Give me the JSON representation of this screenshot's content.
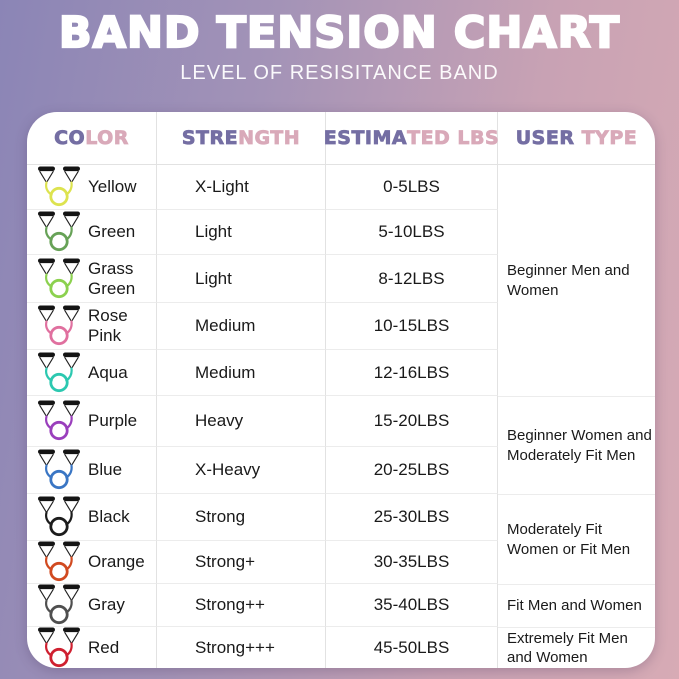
{
  "chart_data": {
    "type": "table",
    "title": "BAND TENSION CHART",
    "subtitle": "LEVEL OF RESISITANCE BAND",
    "columns": [
      {
        "full": "COLOR",
        "part1": "CO",
        "part2": "LOR"
      },
      {
        "full": "STRENGTH",
        "part1": "STRE",
        "part2": "NGTH"
      },
      {
        "full": "ESTIMATED LBS",
        "part1": "ESTIMA",
        "part2": "TED LBS"
      },
      {
        "full": "USER TYPE",
        "part1": "USER",
        "part2": " TYPE"
      }
    ],
    "rows": [
      {
        "color": "Yellow",
        "strength": "X-Light",
        "lbs": "0-5LBS",
        "band_hex": "#dde34f"
      },
      {
        "color": "Green",
        "strength": "Light",
        "lbs": "5-10LBS",
        "band_hex": "#67a257"
      },
      {
        "color": "Grass Green",
        "strength": "Light",
        "lbs": "8-12LBS",
        "band_hex": "#8cd14f"
      },
      {
        "color": "Rose Pink",
        "strength": "Medium",
        "lbs": "10-15LBS",
        "band_hex": "#e0709f"
      },
      {
        "color": "Aqua",
        "strength": "Medium",
        "lbs": "12-16LBS",
        "band_hex": "#2cc8b0"
      },
      {
        "color": "Purple",
        "strength": "Heavy",
        "lbs": "15-20LBS",
        "band_hex": "#9a3fbc"
      },
      {
        "color": "Blue",
        "strength": "X-Heavy",
        "lbs": "20-25LBS",
        "band_hex": "#3a76c4"
      },
      {
        "color": "Black",
        "strength": "Strong",
        "lbs": "25-30LBS",
        "band_hex": "#1c1c1c"
      },
      {
        "color": "Orange",
        "strength": "Strong+",
        "lbs": "30-35LBS",
        "band_hex": "#d14a20"
      },
      {
        "color": "Gray",
        "strength": "Strong++",
        "lbs": "35-40LBS",
        "band_hex": "#4f4f4f"
      },
      {
        "color": "Red",
        "strength": "Strong+++",
        "lbs": "45-50LBS",
        "band_hex": "#cf2030"
      }
    ],
    "user_type_groups": [
      {
        "label": "Beginner Men and Women",
        "rows": 5
      },
      {
        "label": "Beginner Women and Moderately Fit Men",
        "rows": 2
      },
      {
        "label": "Moderately Fit Women or Fit Men",
        "rows": 2
      },
      {
        "label": "Fit Men and Women",
        "rows": 1
      },
      {
        "label": "Extremely Fit Men and Women",
        "rows": 1
      }
    ],
    "layout_hints": {
      "legend_position": "none",
      "grid": "table-lines"
    }
  },
  "colors": {
    "header_purple": "#746ea3",
    "header_pink": "#d9a9b9",
    "background_left": "#8b85b6",
    "background_right": "#d7abb5",
    "card_background": "#ffffff"
  }
}
